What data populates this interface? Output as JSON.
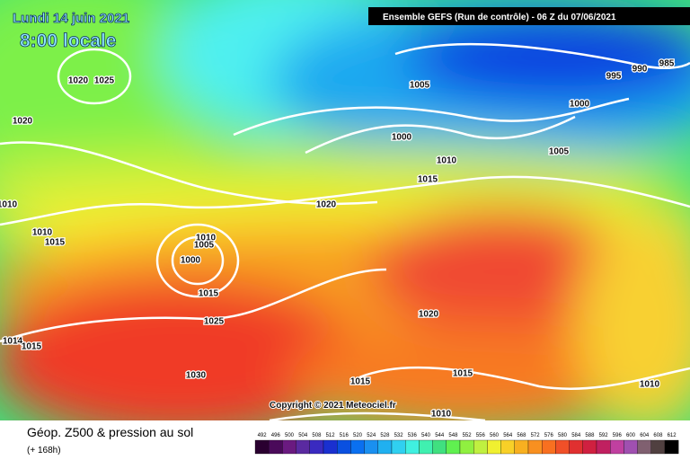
{
  "map": {
    "date": "Lundi 14 juin 2021",
    "time": "8:00 locale",
    "run": "Ensemble GEFS  (Run de contrôle)  -  06 Z du 07/06/2021",
    "copyright": "Copyright © 2021 Meteociel.fr",
    "isobars": [
      1020,
      1025,
      1020,
      1010,
      1010,
      1015,
      1010,
      1005,
      1000,
      1015,
      1025,
      1014,
      1015,
      1030,
      1020,
      1005,
      1000,
      1010,
      1015,
      995,
      990,
      985,
      1000,
      1005,
      1020,
      1015,
      1015,
      1010,
      1010
    ]
  },
  "footer": {
    "title": "Géop. Z500 & pression au sol",
    "lead": "(+ 168h)",
    "scale": [
      492,
      496,
      500,
      504,
      508,
      512,
      516,
      520,
      524,
      528,
      532,
      536,
      540,
      544,
      548,
      552,
      556,
      560,
      564,
      568,
      572,
      576,
      580,
      584,
      588,
      592,
      596,
      600,
      604,
      608,
      612
    ]
  }
}
